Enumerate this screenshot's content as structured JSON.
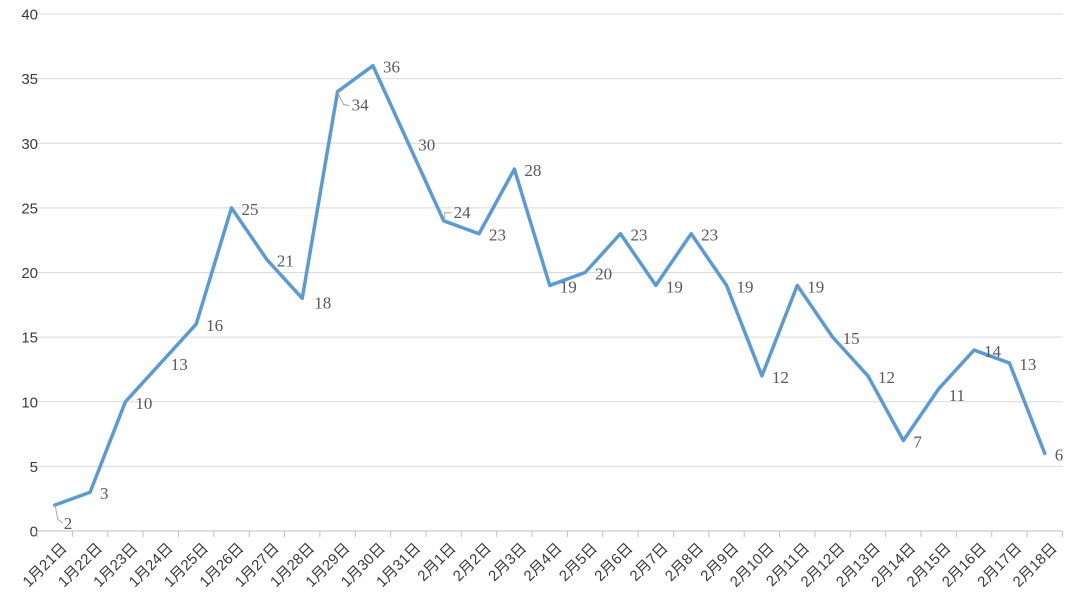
{
  "chart_data": {
    "type": "line",
    "title": "",
    "xlabel": "",
    "ylabel": "",
    "categories": [
      "1月21日",
      "1月22日",
      "1月23日",
      "1月24日",
      "1月25日",
      "1月26日",
      "1月27日",
      "1月28日",
      "1月29日",
      "1月30日",
      "1月31日",
      "2月1日",
      "2月2日",
      "2月3日",
      "2月4日",
      "2月5日",
      "2月6日",
      "2月7日",
      "2月8日",
      "2月9日",
      "2月10日",
      "2月11日",
      "2月12日",
      "2月13日",
      "2月14日",
      "2月15日",
      "2月16日",
      "2月17日",
      "2月18日"
    ],
    "values": [
      2,
      3,
      10,
      13,
      16,
      25,
      21,
      18,
      34,
      36,
      30,
      24,
      23,
      28,
      19,
      20,
      23,
      19,
      23,
      19,
      12,
      19,
      15,
      12,
      7,
      11,
      14,
      13,
      6
    ],
    "ylim": [
      0,
      40
    ],
    "y_ticks": [
      0,
      5,
      10,
      15,
      20,
      25,
      30,
      35,
      40
    ],
    "grid": true,
    "legend": "none",
    "data_labels_shown": true,
    "colors": {
      "line": "#5B9BD5",
      "gridline": "#D9D9D9",
      "axis_line": "#BFBFBF",
      "tick_mark": "#BFBFBF",
      "leader_line": "#A6A6A6",
      "data_label_text": "#595959",
      "axis_tick_text": "#3A3A3A",
      "background": "#FFFFFF"
    }
  }
}
